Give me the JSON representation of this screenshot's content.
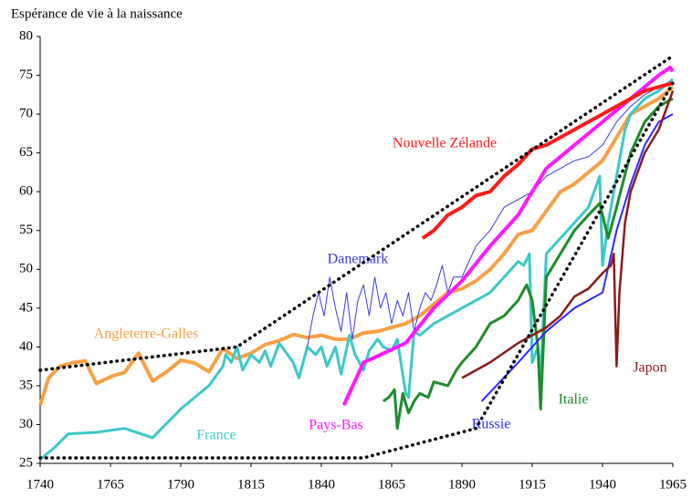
{
  "chart_data": {
    "type": "line",
    "title": "Espérance de vie à la naissance",
    "xlim": [
      1740,
      1965
    ],
    "xticks": [
      1740,
      1765,
      1790,
      1815,
      1840,
      1865,
      1890,
      1915,
      1940,
      1965
    ],
    "ylim": [
      25,
      80
    ],
    "yticks": [
      25,
      30,
      35,
      40,
      45,
      50,
      55,
      60,
      65,
      70,
      75,
      80
    ],
    "grid": false,
    "series": [
      {
        "name": "Angleterre-Galles",
        "color": "#f7a045",
        "x": [
          1740,
          1743,
          1747,
          1752,
          1756,
          1760,
          1766,
          1770,
          1775,
          1780,
          1785,
          1790,
          1795,
          1800,
          1805,
          1810,
          1815,
          1820,
          1825,
          1830,
          1835,
          1840,
          1845,
          1850,
          1855,
          1860,
          1865,
          1870,
          1875,
          1880,
          1885,
          1890,
          1895,
          1900,
          1905,
          1910,
          1915,
          1920,
          1925,
          1930,
          1935,
          1940,
          1945,
          1950,
          1955,
          1960,
          1965
        ],
        "values": [
          32.5,
          36,
          37.5,
          38,
          38.2,
          35.3,
          36.3,
          36.7,
          39.2,
          35.6,
          36.8,
          38.3,
          37.9,
          36.8,
          39.8,
          38.5,
          39.2,
          40.3,
          40.8,
          41.6,
          41.2,
          41.5,
          41,
          41,
          41.8,
          42,
          42.5,
          43,
          44,
          45.5,
          47,
          47.5,
          48.5,
          50,
          52,
          54.5,
          55,
          57.5,
          60,
          61,
          62.5,
          64,
          67,
          70,
          71,
          72,
          73.5
        ]
      },
      {
        "name": "France",
        "color": "#3cc8c8",
        "x": [
          1740,
          1745,
          1750,
          1760,
          1770,
          1780,
          1790,
          1800,
          1805,
          1806,
          1808,
          1810,
          1812,
          1815,
          1818,
          1820,
          1822,
          1825,
          1828,
          1830,
          1832,
          1835,
          1838,
          1840,
          1842,
          1845,
          1847,
          1850,
          1852,
          1855,
          1857,
          1860,
          1862,
          1865,
          1867,
          1870,
          1871,
          1873,
          1875,
          1880,
          1885,
          1890,
          1895,
          1900,
          1905,
          1910,
          1912,
          1914,
          1915,
          1917,
          1918,
          1920,
          1925,
          1930,
          1935,
          1939,
          1940,
          1942,
          1945,
          1948,
          1950,
          1955,
          1960,
          1965
        ],
        "values": [
          25.5,
          27,
          28.8,
          29,
          29.5,
          28.3,
          32,
          35,
          37.5,
          39,
          38,
          40,
          37,
          39,
          38,
          39.5,
          37.5,
          40.5,
          39,
          38,
          36,
          40,
          39,
          40,
          37.5,
          40,
          36.5,
          41.5,
          39,
          37,
          39.5,
          41,
          40,
          39.5,
          41,
          34,
          33.5,
          42,
          41.5,
          43,
          44,
          45,
          46,
          47,
          49,
          51,
          50.5,
          52,
          38,
          40,
          36,
          52,
          54,
          56,
          58,
          62,
          50.5,
          56,
          62,
          68,
          70,
          72,
          73,
          74.5
        ]
      },
      {
        "name": "Danemark",
        "color": "#3a3ad8",
        "x": [
          1835,
          1837,
          1839,
          1841,
          1843,
          1845,
          1847,
          1849,
          1851,
          1853,
          1855,
          1857,
          1859,
          1861,
          1863,
          1865,
          1867,
          1869,
          1871,
          1873,
          1875,
          1877,
          1879,
          1881,
          1883,
          1885,
          1887,
          1890,
          1895,
          1900,
          1905,
          1910,
          1915,
          1920,
          1925,
          1930,
          1935,
          1940,
          1945,
          1950,
          1955,
          1960,
          1965
        ],
        "values": [
          40,
          44,
          47,
          44,
          49,
          45,
          42,
          47,
          41,
          46,
          48,
          44,
          49,
          45,
          47,
          43,
          46,
          44,
          47,
          42,
          45,
          47,
          46,
          48,
          50.5,
          47,
          49,
          49,
          53,
          55,
          58,
          59,
          60,
          62,
          63,
          64,
          64.5,
          66,
          69,
          71,
          72.5,
          73.5,
          74
        ]
      },
      {
        "name": "Pays-Bas",
        "color": "#ff19ff",
        "x": [
          1848,
          1855,
          1870,
          1880,
          1890,
          1900,
          1910,
          1920,
          1930,
          1940,
          1950,
          1960,
          1964,
          1965
        ],
        "values": [
          32.5,
          38,
          40.5,
          45,
          48.5,
          53,
          57,
          63,
          66,
          69,
          72,
          75,
          76,
          75.5
        ]
      },
      {
        "name": "Nouvelle Zélande",
        "color": "#ff1a1a",
        "x": [
          1876,
          1880,
          1885,
          1890,
          1895,
          1900,
          1905,
          1910,
          1915,
          1920,
          1925,
          1930,
          1935,
          1940,
          1945,
          1950,
          1955,
          1960,
          1965
        ],
        "values": [
          54,
          55,
          57,
          58,
          59.5,
          60,
          62,
          63.5,
          65.5,
          66,
          67,
          68,
          69,
          70,
          71,
          72,
          73,
          73.5,
          74
        ]
      },
      {
        "name": "Italie",
        "color": "#1e8c2a",
        "x": [
          1862,
          1864,
          1866,
          1867,
          1869,
          1871,
          1873,
          1875,
          1878,
          1880,
          1885,
          1888,
          1890,
          1895,
          1900,
          1905,
          1910,
          1913,
          1915,
          1917,
          1918,
          1920,
          1925,
          1930,
          1935,
          1939,
          1942,
          1945,
          1950,
          1955,
          1960,
          1965
        ],
        "values": [
          33,
          33.5,
          34.5,
          29.5,
          34,
          31.5,
          33,
          34,
          33.5,
          35.5,
          35,
          37,
          38,
          40,
          43,
          44,
          46,
          48,
          46,
          40,
          32,
          49,
          52,
          55,
          57,
          58.5,
          54,
          58,
          65,
          69,
          71,
          72
        ]
      },
      {
        "name": "Russie",
        "color": "#2a2aff",
        "x": [
          1897,
          1910,
          1920,
          1930,
          1940,
          1945,
          1950,
          1955,
          1960,
          1965
        ],
        "values": [
          33,
          38,
          42,
          45,
          47,
          55,
          61,
          66,
          69,
          70
        ]
      },
      {
        "name": "Japon",
        "color": "#8b1a1a",
        "x": [
          1890,
          1900,
          1910,
          1920,
          1925,
          1930,
          1935,
          1940,
          1943,
          1944,
          1945,
          1946,
          1948,
          1950,
          1955,
          1960,
          1965
        ],
        "values": [
          36,
          38,
          40.5,
          42.5,
          44,
          46.5,
          47.5,
          49.5,
          50.5,
          52,
          37.5,
          47,
          56,
          60,
          65,
          68,
          73
        ]
      },
      {
        "color": "#000000",
        "dash": "dotted",
        "x": [
          1740,
          1810,
          1965
        ],
        "values": [
          37,
          40,
          77.5
        ]
      },
      {
        "color": "#000000",
        "dash": "dotted",
        "x": [
          1740,
          1855,
          1895,
          1965
        ],
        "values": [
          25.7,
          25.7,
          29.5,
          74
        ]
      }
    ]
  }
}
